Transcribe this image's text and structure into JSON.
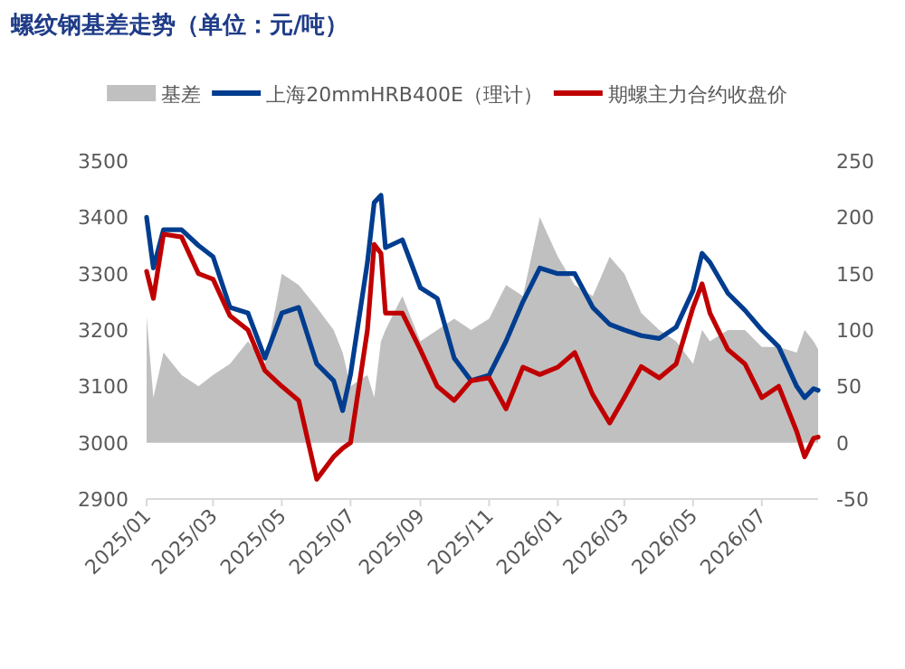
{
  "chart_data": {
    "type": "line",
    "title": "螺纹钢基差走势（单位：元/吨）",
    "legend": "top",
    "x": [
      "2025-01-01",
      "2025-01-07",
      "2025-01-16",
      "2025-02-01",
      "2025-02-16",
      "2025-03-01",
      "2025-03-16",
      "2025-04-01",
      "2025-04-16",
      "2025-05-01",
      "2025-05-16",
      "2025-06-01",
      "2025-06-16",
      "2025-06-24",
      "2025-07-01",
      "2025-07-16",
      "2025-07-22",
      "2025-07-28",
      "2025-08-01",
      "2025-08-16",
      "2025-09-01",
      "2025-09-16",
      "2025-10-01",
      "2025-10-16",
      "2025-11-01",
      "2025-11-16",
      "2025-12-01",
      "2025-12-16",
      "2026-01-01",
      "2026-01-16",
      "2026-02-01",
      "2026-02-16",
      "2026-03-01",
      "2026-03-16",
      "2026-04-01",
      "2026-04-16",
      "2026-05-01",
      "2026-05-09",
      "2026-05-16",
      "2026-06-01",
      "2026-06-16",
      "2026-07-01",
      "2026-07-16",
      "2026-08-01",
      "2026-08-08",
      "2026-08-16",
      "2026-08-20"
    ],
    "series": [
      {
        "name": "基差",
        "type": "area",
        "axis": "y2",
        "color": "#c0c0c0",
        "values": [
          112,
          40,
          80,
          60,
          50,
          60,
          70,
          90,
          70,
          150,
          140,
          120,
          100,
          80,
          50,
          60,
          40,
          90,
          100,
          130,
          90,
          100,
          110,
          100,
          110,
          140,
          130,
          200,
          165,
          140,
          130,
          165,
          150,
          115,
          100,
          90,
          70,
          100,
          90,
          100,
          100,
          85,
          85,
          80,
          100,
          90,
          83
        ]
      },
      {
        "name": "上海20mmHRB400E（理计）",
        "color": "#003d8f",
        "values": [
          3400,
          3310,
          3378,
          3378,
          3350,
          3330,
          3240,
          3230,
          3150,
          3230,
          3240,
          3140,
          3110,
          3057,
          3121,
          3320,
          3426,
          3439,
          3346,
          3360,
          3275,
          3256,
          3150,
          3110,
          3120,
          3180,
          3250,
          3310,
          3300,
          3300,
          3240,
          3210,
          3200,
          3190,
          3185,
          3205,
          3270,
          3336,
          3320,
          3265,
          3235,
          3200,
          3170,
          3100,
          3080,
          3096,
          3093
        ]
      },
      {
        "name": "期螺主力合约收盘价",
        "color": "#c00000",
        "values": [
          3304,
          3256,
          3370,
          3365,
          3300,
          3290,
          3225,
          3200,
          3128,
          3100,
          3075,
          2935,
          2975,
          2990,
          3000,
          3200,
          3352,
          3336,
          3230,
          3230,
          3165,
          3100,
          3075,
          3110,
          3115,
          3060,
          3134,
          3121,
          3134,
          3160,
          3085,
          3035,
          3080,
          3135,
          3115,
          3140,
          3240,
          3282,
          3230,
          3165,
          3140,
          3080,
          3100,
          3020,
          2975,
          3008,
          3010
        ]
      }
    ],
    "xlim": [
      "2025-01-01",
      "2026-08-20"
    ],
    "xticks": [
      {
        "value": "2025-01-01",
        "label": "2025/01"
      },
      {
        "value": "2025-03-01",
        "label": "2025/03"
      },
      {
        "value": "2025-05-01",
        "label": "2025/05"
      },
      {
        "value": "2025-07-01",
        "label": "2025/07"
      },
      {
        "value": "2025-09-01",
        "label": "2025/09"
      },
      {
        "value": "2025-11-01",
        "label": "2025/11"
      },
      {
        "value": "2026-01-01",
        "label": "2026/01"
      },
      {
        "value": "2026-03-01",
        "label": "2026/03"
      },
      {
        "value": "2026-05-01",
        "label": "2026/05"
      },
      {
        "value": "2026-07-01",
        "label": "2026/07"
      }
    ],
    "ylim": [
      2900,
      3500
    ],
    "yticks": [
      2900,
      3000,
      3100,
      3200,
      3300,
      3400,
      3500
    ],
    "y2lim": [
      -50,
      250
    ],
    "y2ticks": [
      -50,
      0,
      50,
      100,
      150,
      200,
      250
    ]
  }
}
